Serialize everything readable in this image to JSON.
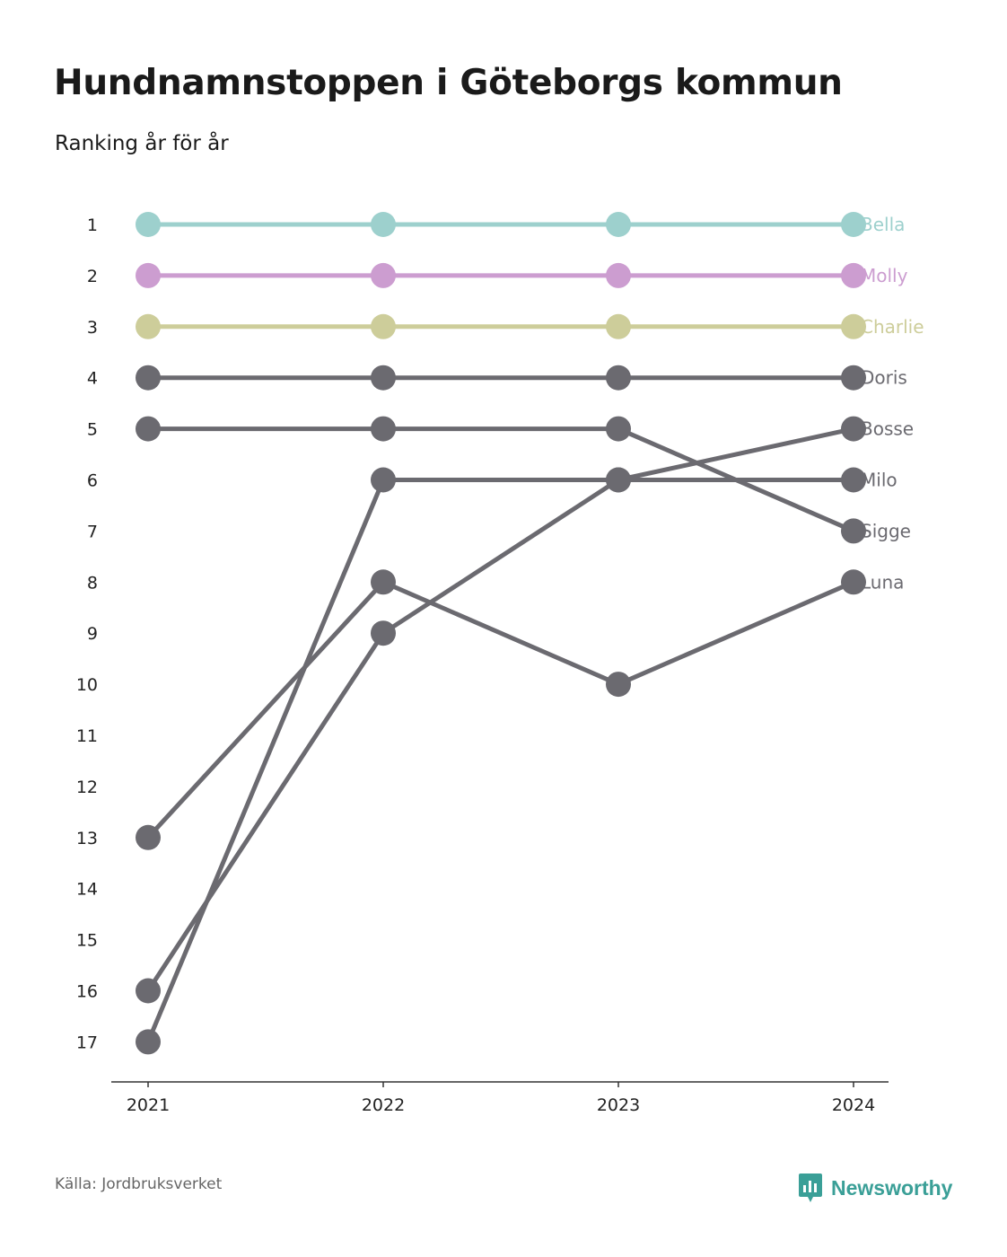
{
  "title": "Hundnamnstoppen i Göteborgs kommun",
  "subtitle": "Ranking år för år",
  "source": "Källa: Jordbruksverket",
  "brand": {
    "name": "Newsworthy",
    "icon": "newsworthy-logo-icon",
    "color": "#3a9f97"
  },
  "chart_data": {
    "type": "line",
    "subtype": "bump",
    "x": [
      "2021",
      "2022",
      "2023",
      "2024"
    ],
    "y_ticks": [
      1,
      2,
      3,
      4,
      5,
      6,
      7,
      8,
      9,
      10,
      11,
      12,
      13,
      14,
      15,
      16,
      17
    ],
    "ylim": [
      1,
      17
    ],
    "y_reversed": true,
    "grid": false,
    "series": [
      {
        "name": "Bella",
        "values": [
          1,
          1,
          1,
          1
        ],
        "color": "#9dd0cd"
      },
      {
        "name": "Molly",
        "values": [
          2,
          2,
          2,
          2
        ],
        "color": "#cc9dd0"
      },
      {
        "name": "Charlie",
        "values": [
          3,
          3,
          3,
          3
        ],
        "color": "#cdcd9a"
      },
      {
        "name": "Doris",
        "values": [
          4,
          4,
          4,
          4
        ],
        "color": "#6b6a70"
      },
      {
        "name": "Bosse",
        "values": [
          16,
          9,
          6,
          5
        ],
        "color": "#6b6a70"
      },
      {
        "name": "Milo",
        "values": [
          17,
          6,
          6,
          6
        ],
        "color": "#6b6a70"
      },
      {
        "name": "Sigge",
        "values": [
          5,
          5,
          5,
          7
        ],
        "color": "#6b6a70"
      },
      {
        "name": "Luna",
        "values": [
          13,
          8,
          10,
          8
        ],
        "color": "#6b6a70"
      }
    ]
  }
}
